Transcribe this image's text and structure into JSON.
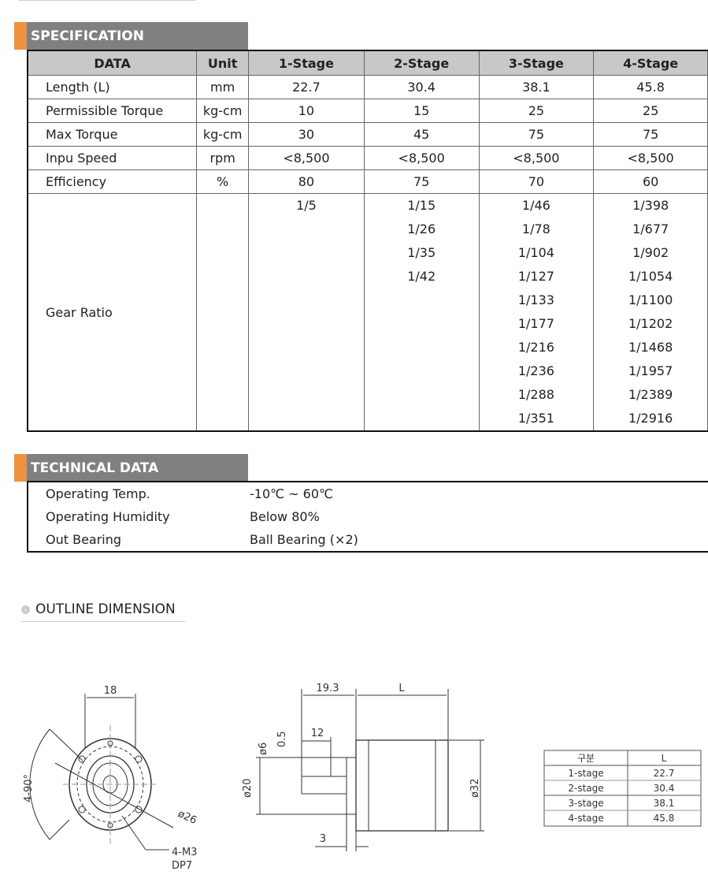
{
  "specification": {
    "title": "SPECIFICATION",
    "headers": [
      "DATA",
      "Unit",
      "1-Stage",
      "2-Stage",
      "3-Stage",
      "4-Stage"
    ],
    "rows": [
      {
        "label": "Length (L)",
        "unit": "mm",
        "values": [
          "22.7",
          "30.4",
          "38.1",
          "45.8"
        ]
      },
      {
        "label": "Permissible Torque",
        "unit": "kg-cm",
        "values": [
          "10",
          "15",
          "25",
          "25"
        ]
      },
      {
        "label": "Max Torque",
        "unit": "kg-cm",
        "values": [
          "30",
          "45",
          "75",
          "75"
        ]
      },
      {
        "label": "Inpu Speed",
        "unit": "rpm",
        "values": [
          "<8,500",
          "<8,500",
          "<8,500",
          "<8,500"
        ]
      },
      {
        "label": "Efficiency",
        "unit": "%",
        "values": [
          "80",
          "75",
          "70",
          "60"
        ]
      }
    ],
    "gear_ratio": {
      "label": "Gear Ratio",
      "stage1": [
        "1/5"
      ],
      "stage2": [
        "1/15",
        "1/26",
        "1/35",
        "1/42"
      ],
      "stage3": [
        "1/46",
        "1/78",
        "1/104",
        "1/127",
        "1/133",
        "1/177",
        "1/216",
        "1/236",
        "1/288",
        "1/351"
      ],
      "stage4": [
        "1/398",
        "1/677",
        "1/902",
        "1/1054",
        "1/1100",
        "1/1202",
        "1/1468",
        "1/1957",
        "1/2389",
        "1/2916"
      ]
    }
  },
  "technical": {
    "title": "TECHNICAL DATA",
    "rows": [
      {
        "label": "Operating Temp.",
        "value": "-10℃ ~ 60℃"
      },
      {
        "label": "Operating Humidity",
        "value": "Below 80%"
      },
      {
        "label": "Out Bearing",
        "value": "Ball Bearing (×2)"
      }
    ]
  },
  "outline": {
    "title": "OUTLINE DIMENSION",
    "front_labels": {
      "width": "18",
      "angle": "4-90°",
      "diameter": "ø26",
      "holes": "4-M3",
      "depth": "DP7"
    },
    "side_labels": {
      "shaft_len": "19.3",
      "length": "L",
      "key": "12",
      "chamfer": "0.5",
      "shaft_dia": "ø6",
      "pilot_dia": "ø20",
      "body_dia": "ø32",
      "pilot_len": "3"
    },
    "length_table": {
      "headers": [
        "구분",
        "L"
      ],
      "rows": [
        [
          "1-stage",
          "22.7"
        ],
        [
          "2-stage",
          "30.4"
        ],
        [
          "3-stage",
          "38.1"
        ],
        [
          "4-stage",
          "45.8"
        ]
      ]
    }
  },
  "colors": {
    "accent": "#f0913f",
    "header_bg": "#808080",
    "table_header_bg": "#c8c8c8"
  }
}
